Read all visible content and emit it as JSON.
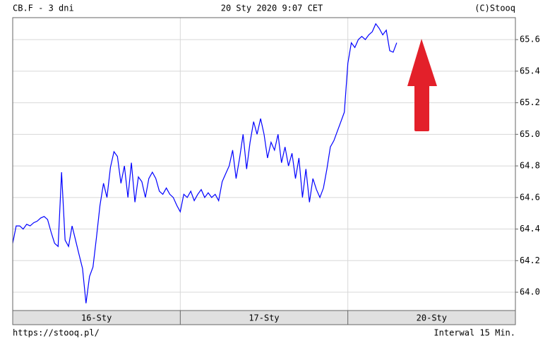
{
  "header": {
    "left": "CB.F - 3 dni",
    "center": "20 Sty 2020 9:07 CET",
    "right": "(C)Stooq"
  },
  "footer": {
    "left": "https://stooq.pl/",
    "right": "Interwal 15 Min."
  },
  "chart_data": {
    "type": "line",
    "color": "#0000ff",
    "grid": true,
    "ylim": [
      63.884,
      65.739
    ],
    "yticks": [
      {
        "value": 64,
        "label": "64.0"
      },
      64.2,
      64.4,
      64.6,
      64.8,
      {
        "value": 65,
        "label": "65.0"
      },
      65.2,
      65.4,
      65.6
    ],
    "days": [
      {
        "label": "16-Sty",
        "values": [
          64.31,
          64.42,
          64.42,
          64.4,
          64.43,
          64.42,
          64.44,
          64.45,
          64.47,
          64.48,
          64.46,
          64.38,
          64.31,
          64.29,
          64.76,
          64.33,
          64.29,
          64.42,
          64.33,
          64.24,
          64.15,
          63.93,
          64.1,
          64.16,
          64.35,
          64.55,
          64.69,
          64.6,
          64.79,
          64.89,
          64.86,
          64.69,
          64.8,
          64.6,
          64.82,
          64.57,
          64.73,
          64.7,
          64.6,
          64.72,
          64.76,
          64.72,
          64.64,
          64.62,
          64.66,
          64.62,
          64.6,
          64.55
        ]
      },
      {
        "label": "17-Sty",
        "values": [
          64.51,
          64.62,
          64.6,
          64.64,
          64.58,
          64.62,
          64.65,
          64.6,
          64.63,
          64.6,
          64.62,
          64.58,
          64.7,
          64.75,
          64.8,
          64.9,
          64.72,
          64.85,
          65.0,
          64.78,
          64.95,
          65.08,
          65.0,
          65.1,
          65.0,
          64.85,
          64.95,
          64.9,
          65.0,
          64.82,
          64.92,
          64.8,
          64.88,
          64.72,
          64.85,
          64.6,
          64.78,
          64.57,
          64.72,
          64.65,
          64.6,
          64.66,
          64.78,
          64.92,
          64.96,
          65.02,
          65.08,
          65.14
        ]
      },
      {
        "label": "20-Sty",
        "values": [
          65.45,
          65.58,
          65.55,
          65.6,
          65.62,
          65.6,
          65.63,
          65.65,
          65.7,
          65.67,
          65.63,
          65.66,
          65.53,
          65.52,
          65.58
        ]
      }
    ]
  }
}
